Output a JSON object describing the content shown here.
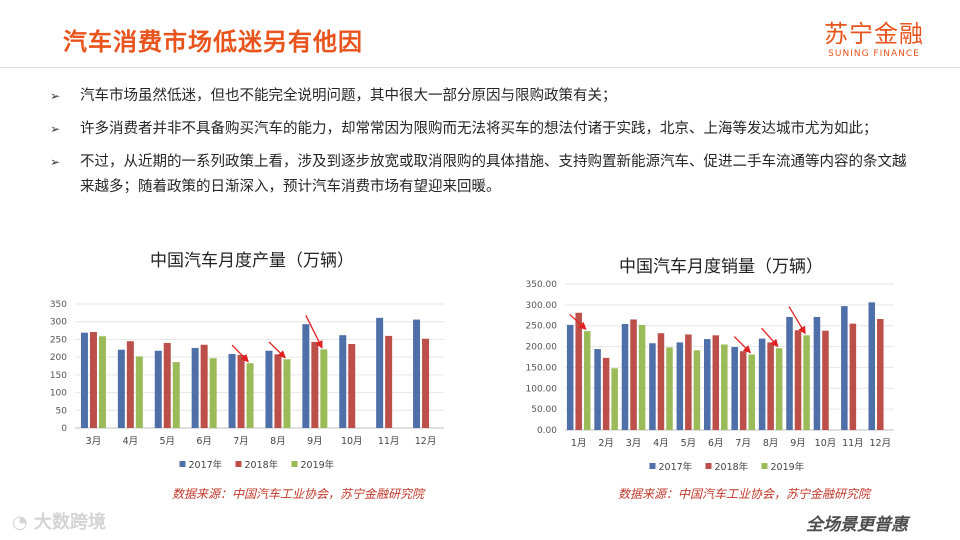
{
  "header": {
    "title": "汽车消费市场低迷另有他因",
    "brand_cn": "苏宁金融",
    "brand_en": "SUNING FINANCE"
  },
  "bullets": [
    "汽车市场虽然低迷，但也不能完全说明问题，其中很大一部分原因与限购政策有关；",
    "许多消费者并非不具备购买汽车的能力，却常常因为限购而无法将买车的想法付诸于实践，北京、上海等发达城市尤为如此；",
    "不过，从近期的一系列政策上看，涉及到逐步放宽或取消限购的具体措施、支持购置新能源汽车、促进二手车流通等内容的条文越来越多；随着政策的日渐深入，预计汽车消费市场有望迎来回暖。"
  ],
  "bullet_icon": "arrow-bullet-icon",
  "colors": {
    "s2017": "#4f6fa8",
    "s2018": "#bd4f4b",
    "s2019": "#9bbb59",
    "accent": "#e8541c"
  },
  "watermark_left": "大数跨境",
  "watermark_right": "全场景更普惠",
  "chart_data": [
    {
      "type": "bar",
      "title": "中国汽车月度产量（万辆）",
      "categories": [
        "3月",
        "4月",
        "5月",
        "6月",
        "7月",
        "8月",
        "9月",
        "10月",
        "11月",
        "12月"
      ],
      "ylim": [
        0,
        350
      ],
      "yticks": [
        "0",
        "50",
        "100",
        "150",
        "200",
        "250",
        "300",
        "350"
      ],
      "ytick_values": [
        0,
        50,
        100,
        150,
        200,
        250,
        300,
        350
      ],
      "grid": true,
      "legend": "bottom",
      "series": [
        {
          "name": "2017年",
          "values": [
            269,
            221,
            218,
            226,
            209,
            218,
            293,
            262,
            311,
            306
          ]
        },
        {
          "name": "2018年",
          "values": [
            271,
            245,
            240,
            235,
            206,
            208,
            243,
            237,
            260,
            252
          ]
        },
        {
          "name": "2019年",
          "values": [
            259,
            202,
            186,
            197,
            183,
            194,
            222,
            null,
            null,
            null
          ]
        }
      ],
      "source": "数据来源：中国汽车工业协会，苏宁金融研究院"
    },
    {
      "type": "bar",
      "title": "中国汽车月度销量（万辆）",
      "categories": [
        "1月",
        "2月",
        "3月",
        "4月",
        "5月",
        "6月",
        "7月",
        "8月",
        "9月",
        "10月",
        "11月",
        "12月"
      ],
      "ylim": [
        0,
        350
      ],
      "yticks": [
        "0.00",
        "50.00",
        "100.00",
        "150.00",
        "200.00",
        "250.00",
        "300.00",
        "350.00"
      ],
      "ytick_values": [
        0,
        50,
        100,
        150,
        200,
        250,
        300,
        350
      ],
      "grid": true,
      "legend": "bottom",
      "series": [
        {
          "name": "2017年",
          "values": [
            252,
            194,
            254,
            208,
            210,
            218,
            199,
            219,
            271,
            271,
            297,
            306
          ]
        },
        {
          "name": "2018年",
          "values": [
            281,
            173,
            265,
            232,
            229,
            227,
            189,
            210,
            239,
            238,
            255,
            266
          ]
        },
        {
          "name": "2019年",
          "values": [
            237,
            148,
            252,
            198,
            191,
            205,
            181,
            196,
            227,
            null,
            null,
            null
          ]
        }
      ],
      "source": "数据来源：中国汽车工业协会，苏宁金融研究院"
    }
  ]
}
